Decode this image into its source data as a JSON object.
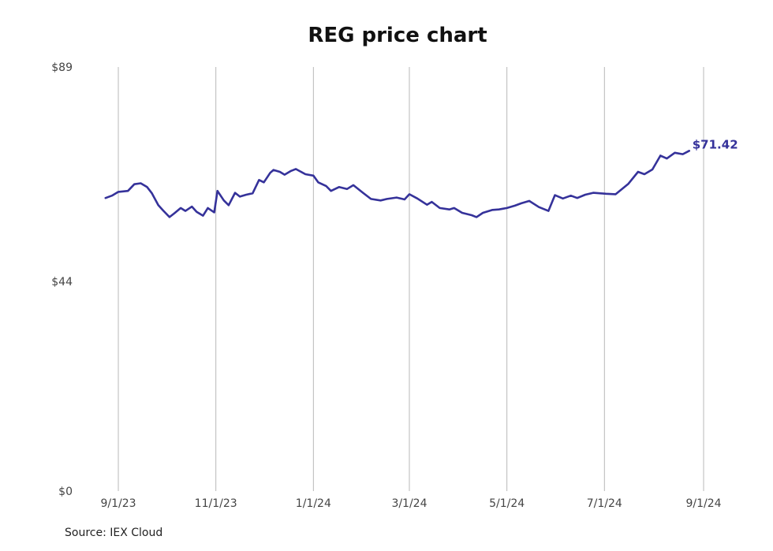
{
  "chart_data": {
    "type": "line",
    "title": "REG price chart",
    "xlabel": "",
    "ylabel": "",
    "source": "Source: IEX Cloud",
    "line_color": "#35329a",
    "grid_color": "#b8b8b8",
    "grid": "vertical",
    "ylim": [
      0,
      89
    ],
    "y_ticks": [
      {
        "value": 0,
        "label": "$0"
      },
      {
        "value": 44,
        "label": "$44"
      },
      {
        "value": 89,
        "label": "$89"
      }
    ],
    "x_ticks": [
      {
        "date": "2023-09-01",
        "label": "9/1/23"
      },
      {
        "date": "2023-11-01",
        "label": "11/1/23"
      },
      {
        "date": "2024-01-01",
        "label": "1/1/24"
      },
      {
        "date": "2024-03-01",
        "label": "3/1/24"
      },
      {
        "date": "2024-05-01",
        "label": "5/1/24"
      },
      {
        "date": "2024-07-01",
        "label": "7/1/24"
      },
      {
        "date": "2024-09-01",
        "label": "9/1/24"
      }
    ],
    "last_value_label": "$71.42",
    "series": [
      {
        "x": [
          "2023-08-24",
          "2023-08-28",
          "2023-09-01",
          "2023-09-07",
          "2023-09-11",
          "2023-09-15",
          "2023-09-19",
          "2023-09-22",
          "2023-09-26",
          "2023-09-29",
          "2023-10-03",
          "2023-10-06",
          "2023-10-10",
          "2023-10-13",
          "2023-10-17",
          "2023-10-20",
          "2023-10-24",
          "2023-10-27",
          "2023-10-31",
          "2023-11-02",
          "2023-11-06",
          "2023-11-09",
          "2023-11-13",
          "2023-11-16",
          "2023-11-20",
          "2023-11-24",
          "2023-11-28",
          "2023-12-01",
          "2023-12-05",
          "2023-12-07",
          "2023-12-11",
          "2023-12-14",
          "2023-12-18",
          "2023-12-21",
          "2023-12-27",
          "2024-01-01",
          "2024-01-04",
          "2024-01-09",
          "2024-01-12",
          "2024-01-17",
          "2024-01-22",
          "2024-01-26",
          "2024-02-01",
          "2024-02-06",
          "2024-02-12",
          "2024-02-16",
          "2024-02-22",
          "2024-02-27",
          "2024-03-01",
          "2024-03-06",
          "2024-03-12",
          "2024-03-15",
          "2024-03-20",
          "2024-03-26",
          "2024-03-29",
          "2024-04-03",
          "2024-04-09",
          "2024-04-12",
          "2024-04-16",
          "2024-04-22",
          "2024-04-26",
          "2024-05-01",
          "2024-05-06",
          "2024-05-10",
          "2024-05-15",
          "2024-05-21",
          "2024-05-27",
          "2024-05-31",
          "2024-06-05",
          "2024-06-10",
          "2024-06-14",
          "2024-06-19",
          "2024-06-24",
          "2024-06-28",
          "2024-07-02",
          "2024-07-08",
          "2024-07-12",
          "2024-07-16",
          "2024-07-22",
          "2024-07-26",
          "2024-07-31",
          "2024-08-05",
          "2024-08-09",
          "2024-08-14",
          "2024-08-19",
          "2024-08-23"
        ],
        "values": [
          61.5,
          62.0,
          62.8,
          63.0,
          64.4,
          64.6,
          63.8,
          62.5,
          60.0,
          58.9,
          57.5,
          58.3,
          59.4,
          58.8,
          59.7,
          58.6,
          57.8,
          59.4,
          58.5,
          63.0,
          61.0,
          60.0,
          62.6,
          61.8,
          62.2,
          62.5,
          65.3,
          64.8,
          66.8,
          67.4,
          67.0,
          66.4,
          67.2,
          67.6,
          66.5,
          66.2,
          64.8,
          64.0,
          63.0,
          63.8,
          63.4,
          64.2,
          62.6,
          61.3,
          61.0,
          61.3,
          61.6,
          61.2,
          62.3,
          61.4,
          60.1,
          60.7,
          59.4,
          59.1,
          59.4,
          58.4,
          57.9,
          57.5,
          58.4,
          59.0,
          59.1,
          59.4,
          59.9,
          60.4,
          60.9,
          59.6,
          58.8,
          62.1,
          61.4,
          62.0,
          61.5,
          62.2,
          62.6,
          62.5,
          62.4,
          62.3,
          63.4,
          64.5,
          67.0,
          66.5,
          67.5,
          70.4,
          69.8,
          71.0,
          70.7,
          71.42
        ]
      }
    ]
  }
}
